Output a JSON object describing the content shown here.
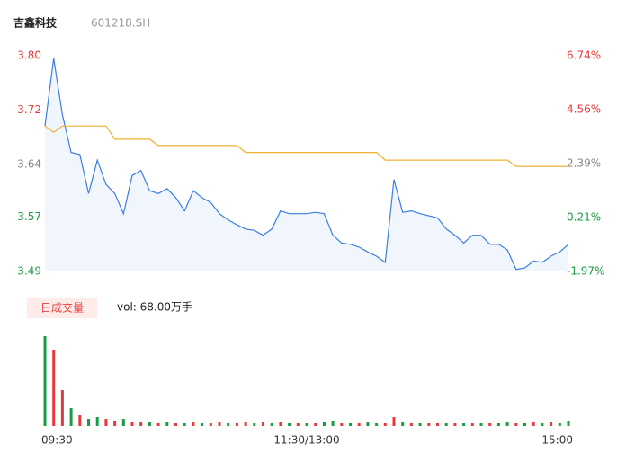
{
  "header": {
    "name": "吉鑫科技",
    "code": "601218.SH"
  },
  "chart_data": {
    "type": "intraday",
    "xlim": [
      0,
      240
    ],
    "xticks": [
      {
        "value": 0,
        "label": "09:30"
      },
      {
        "value": 120,
        "label": "11:30/13:00"
      },
      {
        "value": 240,
        "label": "15:00"
      }
    ],
    "ylim": [
      3.49,
      3.8
    ],
    "yticks": [
      {
        "value": 3.8,
        "label": "3.80",
        "color": "#e8393a"
      },
      {
        "value": 3.722,
        "label": "3.72",
        "color": "#e8393a"
      },
      {
        "value": 3.644,
        "label": "3.64",
        "color": "#888888"
      },
      {
        "value": 3.568,
        "label": "3.57",
        "color": "#1a9b45"
      },
      {
        "value": 3.49,
        "label": "3.49",
        "color": "#1a9b45"
      }
    ],
    "y2lim": [
      -1.97,
      6.74
    ],
    "y2ticks": [
      {
        "value": 6.74,
        "label": "6.74%",
        "color": "#e8393a"
      },
      {
        "value": 4.56,
        "label": "4.56%",
        "color": "#e8393a"
      },
      {
        "value": 2.39,
        "label": "2.39%",
        "color": "#888888"
      },
      {
        "value": 0.21,
        "label": "0.21%",
        "color": "#1a9b45"
      },
      {
        "value": -1.97,
        "label": "-1.97%",
        "color": "#1a9b45"
      }
    ],
    "x": [
      0,
      4,
      8,
      12,
      16,
      20,
      24,
      28,
      32,
      36,
      40,
      44,
      48,
      52,
      56,
      60,
      64,
      68,
      72,
      76,
      80,
      84,
      88,
      92,
      96,
      100,
      104,
      108,
      112,
      116,
      120,
      124,
      128,
      132,
      136,
      140,
      144,
      148,
      152,
      156,
      160,
      164,
      168,
      172,
      176,
      180,
      184,
      188,
      192,
      196,
      200,
      204,
      208,
      212,
      216,
      220,
      224,
      228,
      232,
      236,
      240
    ],
    "series": [
      {
        "name": "price",
        "color": "#3b7de0",
        "values": [
          3.699,
          3.796,
          3.715,
          3.661,
          3.658,
          3.602,
          3.65,
          3.615,
          3.602,
          3.573,
          3.628,
          3.635,
          3.606,
          3.602,
          3.609,
          3.596,
          3.577,
          3.606,
          3.596,
          3.589,
          3.573,
          3.564,
          3.557,
          3.551,
          3.549,
          3.542,
          3.551,
          3.577,
          3.573,
          3.573,
          3.573,
          3.575,
          3.573,
          3.542,
          3.531,
          3.529,
          3.525,
          3.518,
          3.512,
          3.503,
          3.622,
          3.575,
          3.577,
          3.573,
          3.57,
          3.567,
          3.551,
          3.542,
          3.531,
          3.542,
          3.542,
          3.529,
          3.529,
          3.521,
          3.493,
          3.495,
          3.505,
          3.503,
          3.512,
          3.518,
          3.529
        ]
      },
      {
        "name": "average",
        "color": "#f0b030",
        "values": [
          3.699,
          3.69,
          3.699,
          3.699,
          3.699,
          3.699,
          3.699,
          3.699,
          3.68,
          3.68,
          3.68,
          3.68,
          3.68,
          3.671,
          3.671,
          3.671,
          3.671,
          3.671,
          3.671,
          3.671,
          3.671,
          3.671,
          3.671,
          3.661,
          3.661,
          3.661,
          3.661,
          3.661,
          3.661,
          3.661,
          3.661,
          3.661,
          3.661,
          3.661,
          3.661,
          3.661,
          3.661,
          3.661,
          3.661,
          3.65,
          3.65,
          3.65,
          3.65,
          3.65,
          3.65,
          3.65,
          3.65,
          3.65,
          3.65,
          3.65,
          3.65,
          3.65,
          3.65,
          3.65,
          3.641,
          3.641,
          3.641,
          3.641,
          3.641,
          3.641,
          3.641
        ]
      }
    ],
    "volume": {
      "legend": "日成交量",
      "label": "vol: 68.00万手",
      "ylim": [
        0,
        100
      ],
      "values": [
        100,
        85,
        40,
        20,
        12,
        8,
        10,
        8,
        6,
        8,
        5,
        4,
        5,
        3,
        4,
        3,
        3,
        4,
        3,
        3,
        5,
        3,
        3,
        4,
        3,
        4,
        3,
        5,
        3,
        3,
        3,
        3,
        4,
        6,
        3,
        3,
        3,
        4,
        3,
        3,
        10,
        4,
        3,
        3,
        3,
        3,
        3,
        3,
        3,
        3,
        3,
        3,
        3,
        4,
        3,
        3,
        4,
        3,
        4,
        3,
        6
      ],
      "colors": [
        "#1a9b45",
        "#e8393a",
        "#e8393a",
        "#1a9b45",
        "#e8393a",
        "#1a9b45",
        "#1a9b45",
        "#e8393a",
        "#e8393a",
        "#1a9b45",
        "#e8393a",
        "#e8393a",
        "#1a9b45",
        "#e8393a",
        "#1a9b45",
        "#e8393a",
        "#1a9b45",
        "#e8393a",
        "#1a9b45",
        "#e8393a",
        "#e8393a",
        "#1a9b45",
        "#e8393a",
        "#e8393a",
        "#1a9b45",
        "#e8393a",
        "#1a9b45",
        "#e8393a",
        "#1a9b45",
        "#e8393a",
        "#1a9b45",
        "#e8393a",
        "#1a9b45",
        "#1a9b45",
        "#e8393a",
        "#1a9b45",
        "#e8393a",
        "#1a9b45",
        "#1a9b45",
        "#e8393a",
        "#e8393a",
        "#1a9b45",
        "#e8393a",
        "#1a9b45",
        "#e8393a",
        "#e8393a",
        "#1a9b45",
        "#e8393a",
        "#1a9b45",
        "#e8393a",
        "#1a9b45",
        "#e8393a",
        "#1a9b45",
        "#1a9b45",
        "#e8393a",
        "#1a9b45",
        "#e8393a",
        "#1a9b45",
        "#e8393a",
        "#1a9b45",
        "#1a9b45"
      ]
    }
  }
}
